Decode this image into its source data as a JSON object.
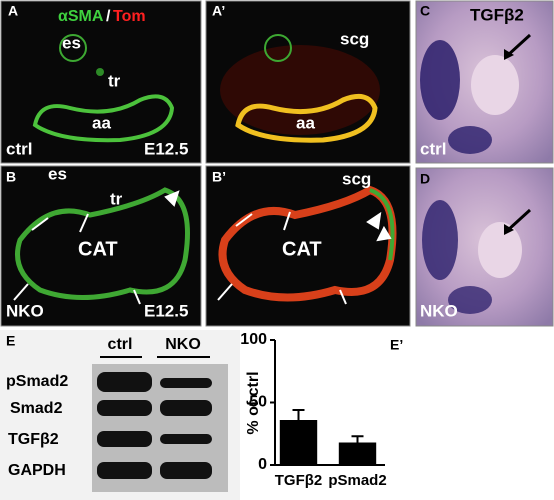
{
  "panels": {
    "A": {
      "label": "A",
      "stain_green": "αSMA",
      "separator": "/",
      "stain_red": "Tom",
      "es": "es",
      "tr": "tr",
      "aa": "aa",
      "genotype": "ctrl",
      "stage": "E12.5"
    },
    "A2": {
      "label": "A’",
      "scg": "scg",
      "aa": "aa"
    },
    "C": {
      "label": "C",
      "probe": "TGFβ2",
      "genotype": "ctrl"
    },
    "B": {
      "label": "B",
      "es": "es",
      "tr": "tr",
      "cat": "CAT",
      "genotype": "NKO",
      "stage": "E12.5"
    },
    "B2": {
      "label": "B’",
      "scg": "scg",
      "cat": "CAT"
    },
    "D": {
      "label": "D",
      "genotype": "NKO"
    },
    "E": {
      "label": "E",
      "columns": [
        "ctrl",
        "NKO"
      ],
      "rows": [
        "pSmad2",
        "Smad2",
        "TGFβ2",
        "GAPDH"
      ]
    }
  },
  "chart_data": {
    "type": "bar",
    "panel_label": "E’",
    "ylabel": "% of ctrl",
    "categories": [
      "TGFβ2",
      "pSmad2"
    ],
    "values": [
      36,
      18
    ],
    "errors": [
      8,
      5
    ],
    "color": "#000000",
    "ylim": [
      0,
      100
    ],
    "yticks": [
      0,
      50,
      100
    ]
  }
}
